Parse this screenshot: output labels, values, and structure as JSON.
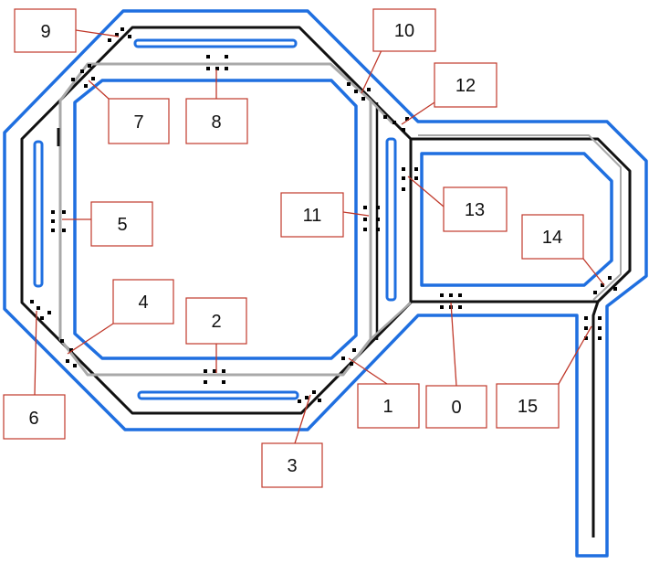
{
  "colors": {
    "outer_boundary": "#1f6fe0",
    "track_black": "#111111",
    "track_gray": "#a9a9a9",
    "label_border": "#c0392b",
    "leader_line": "#c0392b",
    "sensor_dot": "#000000"
  },
  "labels": [
    {
      "id": "0",
      "text": "0"
    },
    {
      "id": "1",
      "text": "1"
    },
    {
      "id": "2",
      "text": "2"
    },
    {
      "id": "3",
      "text": "3"
    },
    {
      "id": "4",
      "text": "4"
    },
    {
      "id": "5",
      "text": "5"
    },
    {
      "id": "6",
      "text": "6"
    },
    {
      "id": "7",
      "text": "7"
    },
    {
      "id": "8",
      "text": "8"
    },
    {
      "id": "9",
      "text": "9"
    },
    {
      "id": "10",
      "text": "10"
    },
    {
      "id": "11",
      "text": "11"
    },
    {
      "id": "12",
      "text": "12"
    },
    {
      "id": "13",
      "text": "13"
    },
    {
      "id": "14",
      "text": "14"
    },
    {
      "id": "15",
      "text": "15"
    }
  ]
}
